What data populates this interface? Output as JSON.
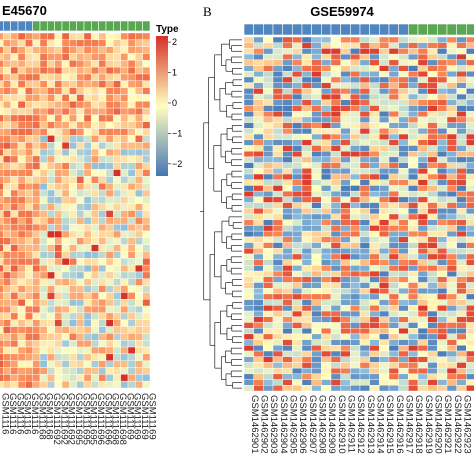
{
  "colors": {
    "type_blue": "#4f86c0",
    "type_green": "#5aa652",
    "low": "#4575b4",
    "mid": "#ffffbf",
    "high": "#d73027",
    "tree": "#222222"
  },
  "chart_data": [
    {
      "type": "heatmap",
      "panel_label": "",
      "title": "E45670",
      "row_count": 52,
      "column_types": [
        "blue",
        "blue",
        "blue",
        "blue",
        "blue",
        "green",
        "green",
        "green",
        "green",
        "green",
        "green",
        "green",
        "green",
        "green",
        "green",
        "green",
        "green",
        "green",
        "green",
        "green",
        "green"
      ],
      "column_labels": [
        "GSM1116",
        "GSM1116",
        "GSM1116",
        "GSM1116",
        "GSM1116",
        "GSM11168",
        "GSM11168",
        "GSM111692",
        "GSM111692",
        "GSM111692",
        "GSM111695",
        "GSM111695",
        "GSM111695",
        "GSM111696",
        "GSM111696",
        "GSM111698",
        "GSM111698",
        "GSM11169",
        "GSM11169",
        "GSM11169",
        "GSM11169"
      ],
      "legend": {
        "title": "Type",
        "ticks": [
          2,
          1,
          0,
          -1,
          -2
        ],
        "tick_labels": [
          "2",
          "1",
          "0",
          "−1",
          "−2"
        ],
        "range": [
          -2.4,
          2.2
        ]
      },
      "pattern": "first ~15 rows mostly warm; lower rows: left columns warm, right columns mostly cool-neutral"
    },
    {
      "type": "heatmap",
      "panel_label": "B",
      "title": "GSE59974",
      "row_count": 62,
      "column_types": [
        "blue",
        "blue",
        "blue",
        "blue",
        "blue",
        "blue",
        "blue",
        "blue",
        "blue",
        "blue",
        "blue",
        "blue",
        "blue",
        "blue",
        "blue",
        "blue",
        "blue",
        "green",
        "green",
        "green",
        "green",
        "green",
        "green",
        "green"
      ],
      "column_labels": [
        "GSM1462901",
        "GSM1462902",
        "GSM1462903",
        "GSM1462904",
        "GSM1462905",
        "GSM1462906",
        "GSM1462907",
        "GSM1462908",
        "GSM1462909",
        "GSM1462910",
        "GSM1462911",
        "GSM1462912",
        "GSM1462913",
        "GSM1462914",
        "GSM1462915",
        "GSM1462916",
        "GSM1462917",
        "GSM1462918",
        "GSM1462919",
        "GSM1462920",
        "GSM1462921",
        "GSM1462922",
        "GSM1462923",
        "GSM1462924"
      ],
      "dendrogram": "rows",
      "pattern": "mixed red/blue/yellow without clear block structure"
    }
  ]
}
